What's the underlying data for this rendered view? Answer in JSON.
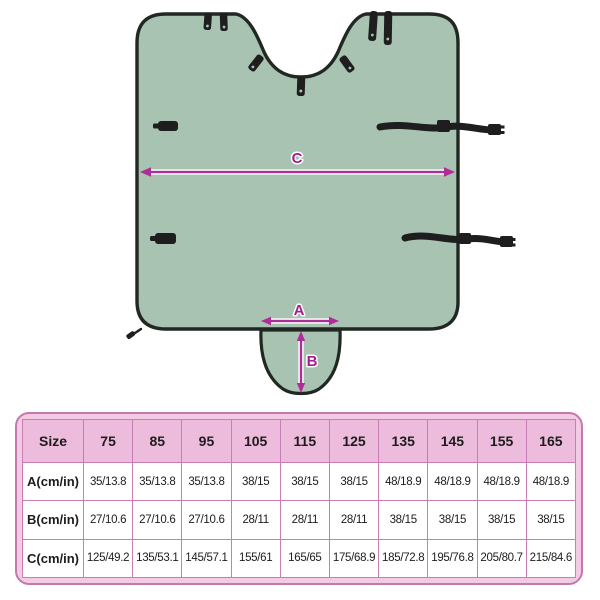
{
  "diagram": {
    "dimension_labels": {
      "C": "C",
      "A": "A",
      "B": "B"
    },
    "colors": {
      "fabric_green": "#a9c3b3",
      "outline_black": "#212721",
      "strap_black": "#1e1e1e",
      "dimension_magenta": "#a8238f"
    }
  },
  "table": {
    "corner_header": "Size",
    "size_columns": [
      "75",
      "85",
      "95",
      "105",
      "115",
      "125",
      "135",
      "145",
      "155",
      "165"
    ],
    "rows": [
      {
        "label": "A(cm/in)",
        "values": [
          "35/13.8",
          "35/13.8",
          "35/13.8",
          "38/15",
          "38/15",
          "38/15",
          "48/18.9",
          "48/18.9",
          "48/18.9",
          "48/18.9"
        ]
      },
      {
        "label": "B(cm/in)",
        "values": [
          "27/10.6",
          "27/10.6",
          "27/10.6",
          "28/11",
          "28/11",
          "28/11",
          "38/15",
          "38/15",
          "38/15",
          "38/15"
        ]
      },
      {
        "label": "C(cm/in)",
        "values": [
          "125/49.2",
          "135/53.1",
          "145/57.1",
          "155/61",
          "165/65",
          "175/68.9",
          "185/72.8",
          "195/76.8",
          "205/80.7",
          "215/84.6"
        ]
      }
    ],
    "colors": {
      "header_bg": "#edbbdc",
      "grid_pink": "#c67eb4",
      "container_bg": "#f4cbe4",
      "border_pink": "#c379ae",
      "text": "#1c1c1c"
    }
  }
}
